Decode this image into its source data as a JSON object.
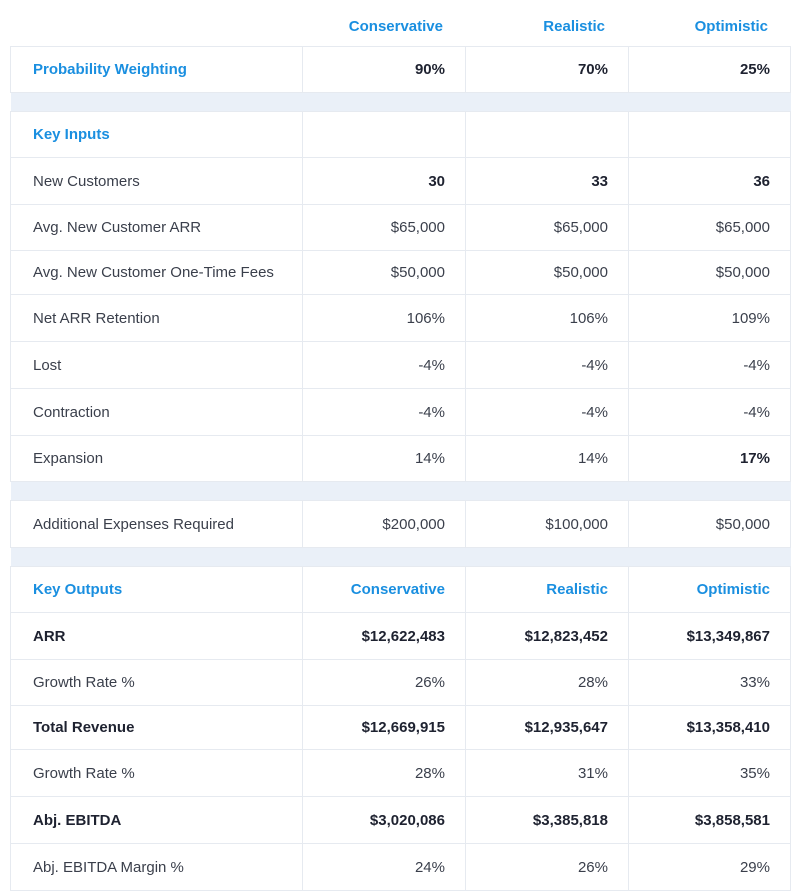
{
  "header": {
    "col1": "Conservative",
    "col2": "Realistic",
    "col3": "Optimistic"
  },
  "probability": {
    "label": "Probability Weighting",
    "values": [
      "90%",
      "70%",
      "25%"
    ]
  },
  "key_inputs": {
    "title": "Key Inputs",
    "rows": [
      {
        "label": "New Customers",
        "values": [
          "30",
          "33",
          "36"
        ]
      },
      {
        "label": "Avg. New Customer ARR",
        "values": [
          "$65,000",
          "$65,000",
          "$65,000"
        ]
      },
      {
        "label": "Avg. New Customer One-Time Fees",
        "values": [
          "$50,000",
          "$50,000",
          "$50,000"
        ]
      },
      {
        "label": "Net ARR Retention",
        "values": [
          "106%",
          "106%",
          "109%"
        ]
      },
      {
        "label": "Lost",
        "values": [
          "-4%",
          "-4%",
          "-4%"
        ]
      },
      {
        "label": "Contraction",
        "values": [
          "-4%",
          "-4%",
          "-4%"
        ]
      },
      {
        "label": "Expansion",
        "values": [
          "14%",
          "14%",
          "17%"
        ]
      }
    ]
  },
  "expenses": {
    "label": "Additional Expenses Required",
    "values": [
      "$200,000",
      "$100,000",
      "$50,000"
    ]
  },
  "key_outputs": {
    "title": "Key Outputs",
    "headers": [
      "Conservative",
      "Realistic",
      "Optimistic"
    ],
    "rows": [
      {
        "label": "ARR",
        "values": [
          "$12,622,483",
          "$12,823,452",
          "$13,349,867"
        ]
      },
      {
        "label": "Growth Rate %",
        "values": [
          "26%",
          "28%",
          "33%"
        ]
      },
      {
        "label": "Total Revenue",
        "values": [
          "$12,669,915",
          "$12,935,647",
          "$13,358,410"
        ]
      },
      {
        "label": "Growth Rate %",
        "values": [
          "28%",
          "31%",
          "35%"
        ]
      },
      {
        "label": "Abj. EBITDA",
        "values": [
          "$3,020,086",
          "$3,385,818",
          "$3,858,581"
        ]
      },
      {
        "label": "Abj. EBITDA Margin %",
        "values": [
          "24%",
          "26%",
          "29%"
        ]
      }
    ]
  }
}
